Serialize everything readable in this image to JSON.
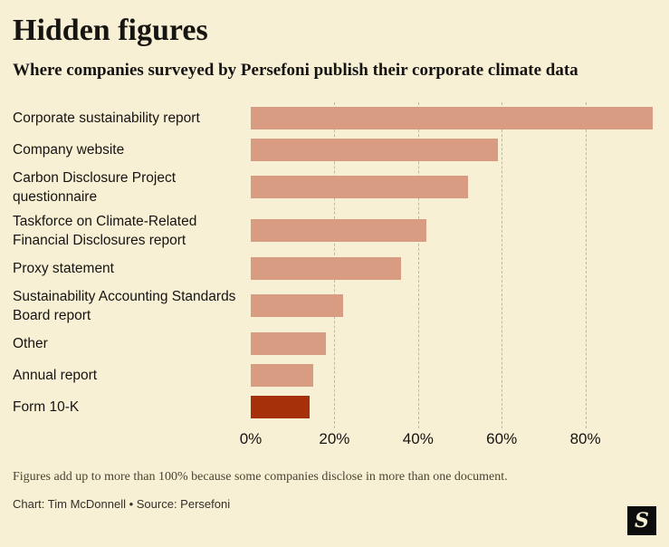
{
  "header": {
    "title": "Hidden figures",
    "subtitle": "Where companies surveyed by Persefoni publish their corporate climate data"
  },
  "chart_data": {
    "type": "bar",
    "orientation": "horizontal",
    "title": "Hidden figures",
    "subtitle": "Where companies surveyed by Persefoni publish their corporate climate data",
    "categories": [
      "Corporate sustainability report",
      "Company website",
      "Carbon Disclosure Project questionnaire",
      "Taskforce on Climate-Related Financial Disclosures report",
      "Proxy statement",
      "Sustainability Accounting Standards Board report",
      "Other",
      "Annual report",
      "Form 10-K"
    ],
    "values": [
      96,
      59,
      52,
      42,
      36,
      22,
      18,
      15,
      14
    ],
    "unit": "%",
    "xlim": [
      0,
      100
    ],
    "x_ticks": [
      {
        "label": "0%",
        "value": 0
      },
      {
        "label": "20%",
        "value": 20
      },
      {
        "label": "40%",
        "value": 40
      },
      {
        "label": "60%",
        "value": 60
      },
      {
        "label": "80%",
        "value": 80
      }
    ],
    "grid": "dashed-vertical",
    "legend": "none",
    "highlight_index": 8,
    "bar_color": "#d89c82",
    "highlight_color": "#a53009"
  },
  "footer": {
    "note": "Figures add up to more than 100% because some companies disclose in more than one document.",
    "credit": "Chart: Tim McDonnell • Source: Persefoni",
    "logo_glyph": "S"
  },
  "colors": {
    "background": "#f7f0d4",
    "text": "#161412",
    "grid": "#bfb89d",
    "bar": "#d89c82",
    "highlight_bar": "#a53009"
  }
}
